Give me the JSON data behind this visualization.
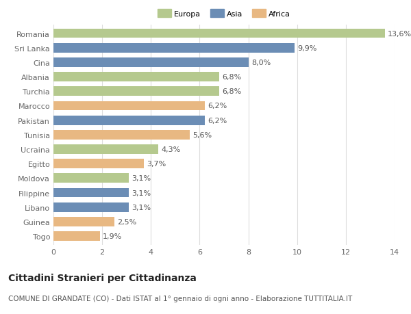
{
  "categories": [
    "Romania",
    "Sri Lanka",
    "Cina",
    "Albania",
    "Turchia",
    "Marocco",
    "Pakistan",
    "Tunisia",
    "Ucraina",
    "Egitto",
    "Moldova",
    "Filippine",
    "Libano",
    "Guinea",
    "Togo"
  ],
  "values": [
    13.6,
    9.9,
    8.0,
    6.8,
    6.8,
    6.2,
    6.2,
    5.6,
    4.3,
    3.7,
    3.1,
    3.1,
    3.1,
    2.5,
    1.9
  ],
  "continents": [
    "Europa",
    "Asia",
    "Asia",
    "Europa",
    "Europa",
    "Africa",
    "Asia",
    "Africa",
    "Europa",
    "Africa",
    "Europa",
    "Asia",
    "Asia",
    "Africa",
    "Africa"
  ],
  "colors": {
    "Europa": "#b5c98e",
    "Asia": "#6b8db5",
    "Africa": "#e8b882"
  },
  "xlim": [
    0,
    14
  ],
  "xticks": [
    0,
    2,
    4,
    6,
    8,
    10,
    12,
    14
  ],
  "title": "Cittadini Stranieri per Cittadinanza",
  "subtitle": "COMUNE DI GRANDATE (CO) - Dati ISTAT al 1° gennaio di ogni anno - Elaborazione TUTTITALIA.IT",
  "background_color": "#ffffff",
  "grid_color": "#dddddd",
  "bar_height": 0.65,
  "value_label_fontsize": 8,
  "title_fontsize": 10,
  "subtitle_fontsize": 7.5,
  "tick_label_fontsize": 8,
  "axis_label_color": "#666666",
  "value_label_color": "#555555",
  "legend_labels": [
    "Europa",
    "Asia",
    "Africa"
  ]
}
